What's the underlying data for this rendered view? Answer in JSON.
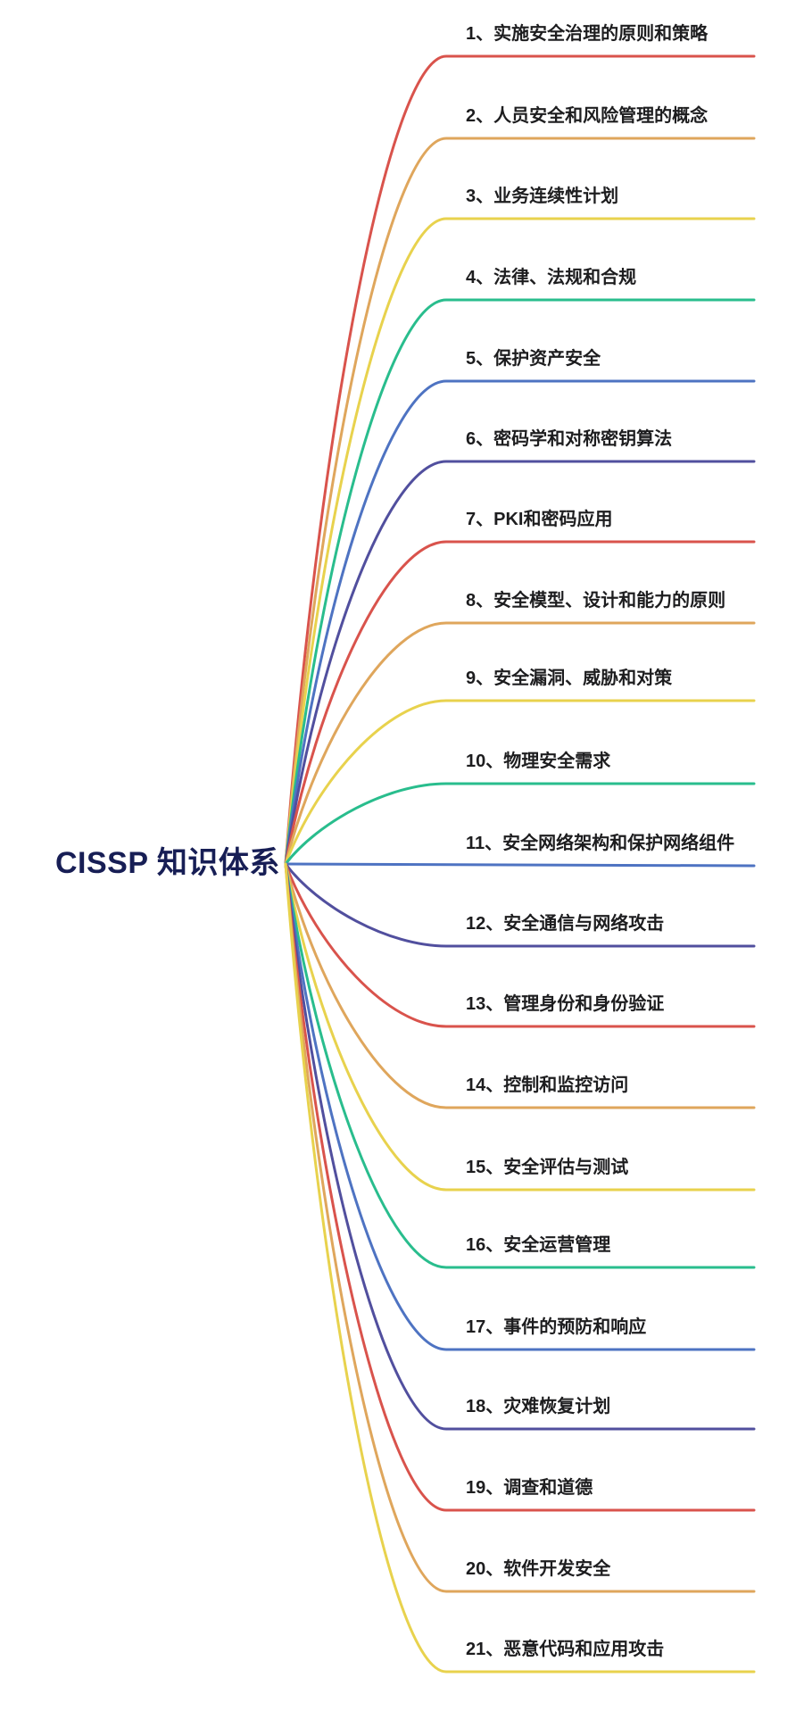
{
  "root": {
    "label": "CISSP 知识体系",
    "color": "#171e55"
  },
  "palette": {
    "red": "#d9534c",
    "orange": "#dfa65c",
    "yellow": "#e8d24d",
    "green": "#29bd8d",
    "blue": "#4e73c2",
    "indigo": "#514f9e"
  },
  "topics": [
    {
      "label": "1、实施安全治理的原则和策略",
      "color": "red"
    },
    {
      "label": "2、人员安全和风险管理的概念",
      "color": "orange"
    },
    {
      "label": "3、业务连续性计划",
      "color": "yellow"
    },
    {
      "label": "4、法律、法规和合规",
      "color": "green"
    },
    {
      "label": "5、保护资产安全",
      "color": "blue"
    },
    {
      "label": "6、密码学和对称密钥算法",
      "color": "indigo"
    },
    {
      "label": "7、PKI和密码应用",
      "color": "red"
    },
    {
      "label": "8、安全模型、设计和能力的原则",
      "color": "orange"
    },
    {
      "label": "9、安全漏洞、威胁和对策",
      "color": "yellow"
    },
    {
      "label": "10、物理安全需求",
      "color": "green"
    },
    {
      "label": "11、安全网络架构和保护网络组件",
      "color": "blue"
    },
    {
      "label": "12、安全通信与网络攻击",
      "color": "indigo"
    },
    {
      "label": "13、管理身份和身份验证",
      "color": "red"
    },
    {
      "label": "14、控制和监控访问",
      "color": "orange"
    },
    {
      "label": "15、安全评估与测试",
      "color": "yellow"
    },
    {
      "label": "16、安全运营管理",
      "color": "green"
    },
    {
      "label": "17、事件的预防和响应",
      "color": "blue"
    },
    {
      "label": "18、灾难恢复计划",
      "color": "indigo"
    },
    {
      "label": "19、调查和道德",
      "color": "red"
    },
    {
      "label": "20、软件开发安全",
      "color": "orange"
    },
    {
      "label": "21、恶意代码和应用攻击",
      "color": "yellow"
    }
  ]
}
